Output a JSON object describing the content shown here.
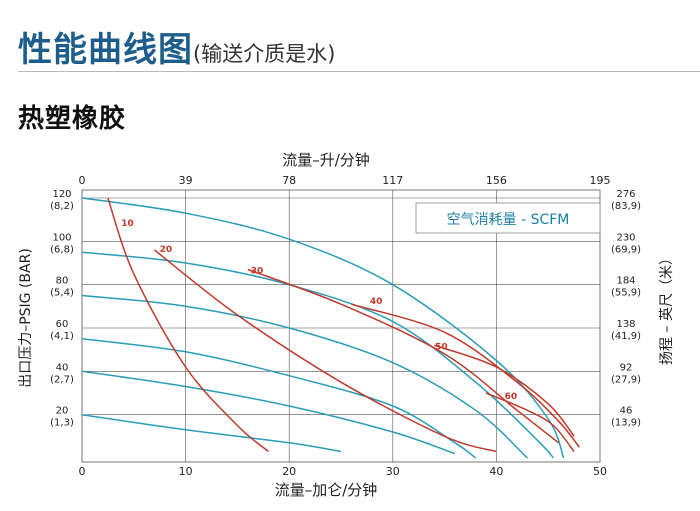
{
  "page": {
    "title": "性能曲线图",
    "title_note": "(输送介质是水)",
    "section": "热塑橡胶"
  },
  "colors": {
    "title": "#1c5d8c",
    "performance_curve": "#2a9cb8",
    "air_curve": "#c0392b",
    "air_label": "#c0392b",
    "legend_text": "#1c7fa6",
    "grid": "#555555"
  },
  "chart_data": {
    "type": "line",
    "top_axis_label": "流量–升/分钟",
    "top_ticks": [
      "0",
      "39",
      "78",
      "117",
      "156",
      "195"
    ],
    "xlabel": "流量–加仑/分钟",
    "x_ticks": [
      0,
      10,
      20,
      30,
      40,
      50
    ],
    "xlim": [
      0,
      50
    ],
    "ylabel_left": "出口压力–PSIG (BAR)",
    "left_ticks": [
      {
        "psig": 120,
        "main": "120",
        "sub": "(8,2)"
      },
      {
        "psig": 100,
        "main": "100",
        "sub": "(6,8)"
      },
      {
        "psig": 80,
        "main": "80",
        "sub": "(5,4)"
      },
      {
        "psig": 60,
        "main": "60",
        "sub": "(4,1)"
      },
      {
        "psig": 40,
        "main": "40",
        "sub": "(2,7)"
      },
      {
        "psig": 20,
        "main": "20",
        "sub": "(1,3)"
      }
    ],
    "ylabel_right": "扬程 – 英尺（米）",
    "right_ticks": [
      {
        "psig": 120,
        "main": "276",
        "sub": "(83,9)"
      },
      {
        "psig": 100,
        "main": "230",
        "sub": "(69,9)"
      },
      {
        "psig": 80,
        "main": "184",
        "sub": "(55,9)"
      },
      {
        "psig": 60,
        "main": "138",
        "sub": "(41,9)"
      },
      {
        "psig": 40,
        "main": "92",
        "sub": "(27,9)"
      },
      {
        "psig": 20,
        "main": "46",
        "sub": "(13,9)"
      }
    ],
    "ylim": [
      0,
      120
    ],
    "grid": true,
    "legend_box": "空气消耗量 - SCFM",
    "performance_curves": [
      {
        "points": [
          [
            0,
            120
          ],
          [
            10,
            113
          ],
          [
            20,
            101
          ],
          [
            30,
            80
          ],
          [
            40,
            45
          ],
          [
            45,
            18
          ],
          [
            46.5,
            0
          ]
        ]
      },
      {
        "points": [
          [
            0,
            95
          ],
          [
            10,
            90
          ],
          [
            20,
            80
          ],
          [
            30,
            63
          ],
          [
            38,
            35
          ],
          [
            44,
            8
          ],
          [
            45.5,
            0
          ]
        ]
      },
      {
        "points": [
          [
            0,
            75
          ],
          [
            10,
            70
          ],
          [
            20,
            60
          ],
          [
            30,
            44
          ],
          [
            38,
            22
          ],
          [
            43,
            0
          ]
        ]
      },
      {
        "points": [
          [
            0,
            55
          ],
          [
            10,
            49
          ],
          [
            20,
            38
          ],
          [
            30,
            24
          ],
          [
            36,
            7
          ],
          [
            38,
            0
          ]
        ]
      },
      {
        "points": [
          [
            0,
            40
          ],
          [
            10,
            33
          ],
          [
            20,
            24
          ],
          [
            30,
            12
          ],
          [
            36,
            2
          ]
        ]
      },
      {
        "points": [
          [
            0,
            20
          ],
          [
            10,
            13
          ],
          [
            20,
            7
          ],
          [
            25,
            3
          ]
        ]
      }
    ],
    "air_curves": [
      {
        "label": "10",
        "label_at": [
          3.5,
          109
        ],
        "points": [
          [
            2.5,
            120
          ],
          [
            5,
            85
          ],
          [
            10,
            42
          ],
          [
            15,
            15
          ],
          [
            18,
            3
          ]
        ]
      },
      {
        "label": "20",
        "label_at": [
          7.2,
          97
        ],
        "points": [
          [
            7,
            96
          ],
          [
            15,
            66
          ],
          [
            25,
            35
          ],
          [
            35,
            10
          ],
          [
            40,
            3
          ]
        ]
      },
      {
        "label": "30",
        "label_at": [
          16,
          87
        ],
        "points": [
          [
            16,
            87
          ],
          [
            25,
            71
          ],
          [
            35,
            48
          ],
          [
            42,
            22
          ],
          [
            46,
            7
          ]
        ]
      },
      {
        "label": "40",
        "label_at": [
          27.5,
          73
        ],
        "points": [
          [
            26,
            71
          ],
          [
            35,
            58
          ],
          [
            42,
            35
          ],
          [
            46,
            17
          ],
          [
            48,
            5
          ]
        ]
      },
      {
        "label": "50",
        "label_at": [
          33.8,
          52
        ],
        "points": [
          [
            34,
            52
          ],
          [
            40,
            42
          ],
          [
            45,
            25
          ],
          [
            47.5,
            10
          ]
        ]
      },
      {
        "label": "60",
        "label_at": [
          40.5,
          29
        ],
        "points": [
          [
            39,
            30
          ],
          [
            43,
            22
          ],
          [
            45.5,
            15
          ],
          [
            47.5,
            3
          ]
        ]
      }
    ]
  }
}
